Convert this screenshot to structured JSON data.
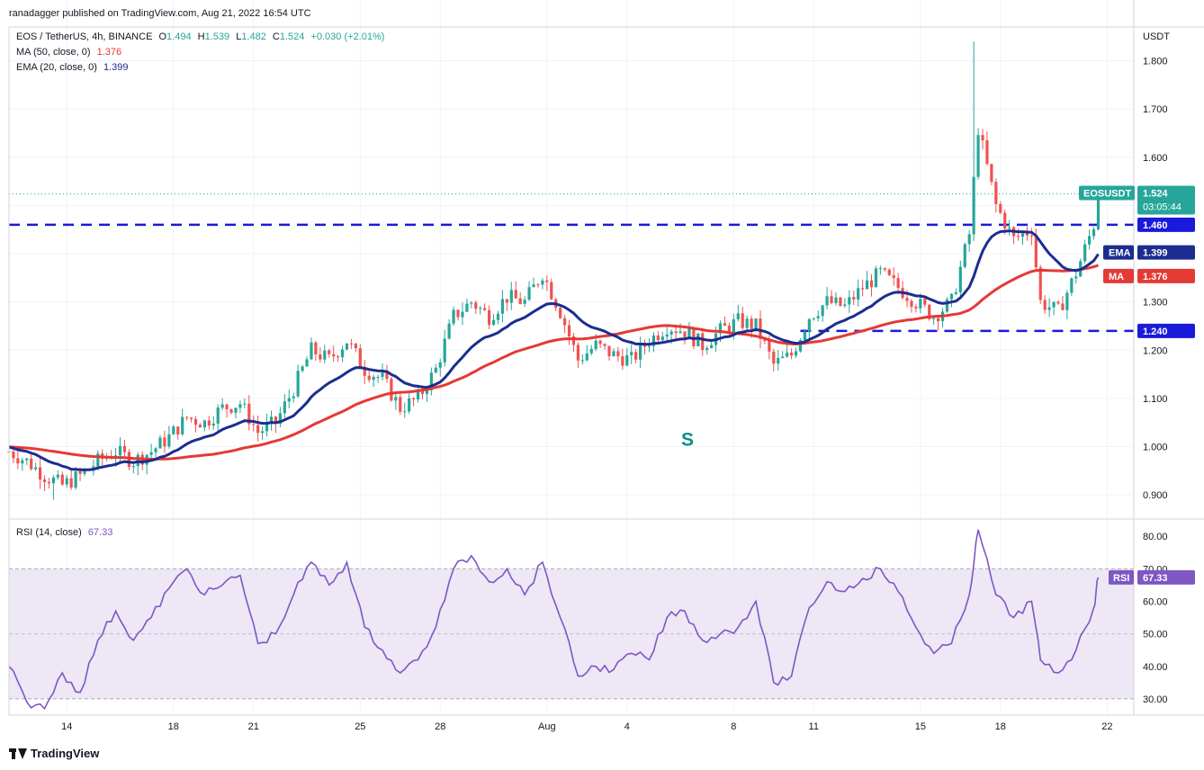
{
  "header": {
    "published": "ranadagger published on TradingView.com, Aug 21, 2022 16:54 UTC",
    "symbol": "EOS / TetherUS, 4h, BINANCE",
    "open_label": "O",
    "open": "1.494",
    "high_label": "H",
    "high": "1.539",
    "low_label": "L",
    "low": "1.482",
    "close_label": "C",
    "close": "1.524",
    "change": "+0.030 (+2.01%)",
    "ma_label": "MA (50, close, 0)",
    "ma_value": "1.376",
    "ema_label": "EMA (20, close, 0)",
    "ema_value": "1.399",
    "rsi_label": "RSI (14, close)",
    "rsi_value": "67.33"
  },
  "footer": {
    "brand": "TradingView"
  },
  "colors": {
    "up": "#26a69a",
    "down": "#ef5350",
    "ema": "#1c2d8f",
    "ma": "#e53935",
    "level": "#1a1adb",
    "rsi": "#7e57c2",
    "rsi_band": "#ede7f6",
    "grid": "#f0f3fa",
    "annotation": "#0a8f86"
  },
  "chart_data": [
    {
      "type": "candlestick",
      "title": "EOS / TetherUS, 4h, BINANCE",
      "price_unit": "USDT",
      "ylim": [
        0.85,
        1.87
      ],
      "y_ticks": [
        0.9,
        1.0,
        1.1,
        1.2,
        1.3,
        1.4,
        1.5,
        1.6,
        1.7,
        1.8
      ],
      "y_tick_labels": [
        "0.900",
        "1.000",
        "1.100",
        "1.200",
        "1.300",
        "1.400",
        "1.500",
        "1.600",
        "1.700",
        "1.800"
      ],
      "x_ticks": [
        {
          "date": "Jul 14",
          "label": "14"
        },
        {
          "date": "Jul 18",
          "label": "18"
        },
        {
          "date": "Jul 21",
          "label": "21"
        },
        {
          "date": "Jul 25",
          "label": "25"
        },
        {
          "date": "Jul 28",
          "label": "28"
        },
        {
          "date": "Aug 1",
          "label": "Aug"
        },
        {
          "date": "Aug 4",
          "label": "4"
        },
        {
          "date": "Aug 8",
          "label": "8"
        },
        {
          "date": "Aug 11",
          "label": "11"
        },
        {
          "date": "Aug 15",
          "label": "15"
        },
        {
          "date": "Aug 18",
          "label": "18"
        },
        {
          "date": "Aug 22",
          "label": "22"
        }
      ],
      "price_path": [
        [
          "Jul 11 20:00",
          0.99
        ],
        [
          "Jul 12 12:00",
          0.97
        ],
        [
          "Jul 13 04:00",
          0.94
        ],
        [
          "Jul 13 20:00",
          0.92
        ],
        [
          "Jul 14 12:00",
          0.94
        ],
        [
          "Jul 15 04:00",
          0.97
        ],
        [
          "Jul 15 20:00",
          0.99
        ],
        [
          "Jul 16 12:00",
          0.97
        ],
        [
          "Jul 17 04:00",
          0.99
        ],
        [
          "Jul 17 20:00",
          1.02
        ],
        [
          "Jul 18 12:00",
          1.06
        ],
        [
          "Jul 19 04:00",
          1.05
        ],
        [
          "Jul 19 20:00",
          1.08
        ],
        [
          "Jul 20 12:00",
          1.09
        ],
        [
          "Jul 21 04:00",
          1.03
        ],
        [
          "Jul 21 20:00",
          1.05
        ],
        [
          "Jul 22 12:00",
          1.12
        ],
        [
          "Jul 23 04:00",
          1.2
        ],
        [
          "Jul 23 20:00",
          1.18
        ],
        [
          "Jul 24 12:00",
          1.22
        ],
        [
          "Jul 25 04:00",
          1.16
        ],
        [
          "Jul 25 20:00",
          1.14
        ],
        [
          "Jul 26 12:00",
          1.08
        ],
        [
          "Jul 27 04:00",
          1.1
        ],
        [
          "Jul 27 20:00",
          1.16
        ],
        [
          "Jul 28 12:00",
          1.27
        ],
        [
          "Jul 29 04:00",
          1.3
        ],
        [
          "Jul 29 20:00",
          1.27
        ],
        [
          "Jul 30 12:00",
          1.31
        ],
        [
          "Jul 31 04:00",
          1.3
        ],
        [
          "Jul 31 20:00",
          1.36
        ],
        [
          "Aug 1 12:00",
          1.28
        ],
        [
          "Aug 2 04:00",
          1.18
        ],
        [
          "Aug 2 20:00",
          1.21
        ],
        [
          "Aug 3 12:00",
          1.19
        ],
        [
          "Aug 4 04:00",
          1.18
        ],
        [
          "Aug 4 20:00",
          1.22
        ],
        [
          "Aug 5 12:00",
          1.25
        ],
        [
          "Aug 6 04:00",
          1.24
        ],
        [
          "Aug 6 20:00",
          1.21
        ],
        [
          "Aug 7 12:00",
          1.24
        ],
        [
          "Aug 8 04:00",
          1.26
        ],
        [
          "Aug 8 20:00",
          1.25
        ],
        [
          "Aug 9 12:00",
          1.17
        ],
        [
          "Aug 10 04:00",
          1.19
        ],
        [
          "Aug 10 20:00",
          1.27
        ],
        [
          "Aug 11 12:00",
          1.3
        ],
        [
          "Aug 12 04:00",
          1.29
        ],
        [
          "Aug 12 20:00",
          1.33
        ],
        [
          "Aug 13 12:00",
          1.36
        ],
        [
          "Aug 14 04:00",
          1.33
        ],
        [
          "Aug 14 20:00",
          1.3
        ],
        [
          "Aug 15 12:00",
          1.27
        ],
        [
          "Aug 16 04:00",
          1.3
        ],
        [
          "Aug 16 20:00",
          1.44
        ],
        [
          "Aug 17 04:00",
          1.66
        ],
        [
          "Aug 17 20:00",
          1.5
        ],
        [
          "Aug 18 12:00",
          1.43
        ],
        [
          "Aug 19 04:00",
          1.45
        ],
        [
          "Aug 19 12:00",
          1.3
        ],
        [
          "Aug 20 04:00",
          1.28
        ],
        [
          "Aug 20 20:00",
          1.36
        ],
        [
          "Aug 21 12:00",
          1.46
        ],
        [
          "Aug 21 16:00",
          1.524
        ]
      ],
      "candle_extremes": {
        "swing_high": 1.84,
        "swing_high_date": "Aug 17",
        "swing_low": 0.89,
        "swing_low_date": "Jul 13"
      },
      "series": [
        {
          "name": "EMA (20, close, 0)",
          "last": 1.399
        },
        {
          "name": "MA (50, close, 0)",
          "last": 1.376
        }
      ],
      "levels": [
        {
          "value": 1.46,
          "label": "1.460"
        },
        {
          "value": 1.24,
          "label": "1.240"
        }
      ],
      "last_price": {
        "symbol": "EOSUSDT",
        "value": 1.524,
        "label": "1.524",
        "countdown": "03:05:44"
      },
      "indicator_tags": [
        {
          "name": "EMA",
          "value": "1.399"
        },
        {
          "name": "MA",
          "value": "1.376"
        }
      ],
      "annotations": [
        {
          "text": "S",
          "date": "Aug 6"
        }
      ]
    },
    {
      "type": "line",
      "title": "RSI (14, close)",
      "ylim": [
        25,
        85
      ],
      "y_ticks": [
        30,
        40,
        50,
        60,
        70,
        80
      ],
      "y_tick_labels": [
        "30.00",
        "40.00",
        "50.00",
        "60.00",
        "70.00",
        "80.00"
      ],
      "band": [
        30,
        70
      ],
      "rsi_path": [
        [
          "Jul 11 20:00",
          40
        ],
        [
          "Jul 12 12:00",
          29
        ],
        [
          "Jul 13 04:00",
          27
        ],
        [
          "Jul 13 20:00",
          38
        ],
        [
          "Jul 14 12:00",
          32
        ],
        [
          "Jul 15 04:00",
          48
        ],
        [
          "Jul 15 20:00",
          57
        ],
        [
          "Jul 16 12:00",
          48
        ],
        [
          "Jul 17 04:00",
          55
        ],
        [
          "Jul 17 20:00",
          64
        ],
        [
          "Jul 18 12:00",
          70
        ],
        [
          "Jul 19 04:00",
          62
        ],
        [
          "Jul 19 20:00",
          65
        ],
        [
          "Jul 20 12:00",
          68
        ],
        [
          "Jul 21 04:00",
          47
        ],
        [
          "Jul 21 20:00",
          50
        ],
        [
          "Jul 22 12:00",
          62
        ],
        [
          "Jul 23 04:00",
          72
        ],
        [
          "Jul 23 20:00",
          65
        ],
        [
          "Jul 24 12:00",
          72
        ],
        [
          "Jul 25 04:00",
          52
        ],
        [
          "Jul 25 20:00",
          45
        ],
        [
          "Jul 26 12:00",
          38
        ],
        [
          "Jul 27 04:00",
          42
        ],
        [
          "Jul 27 20:00",
          52
        ],
        [
          "Jul 28 12:00",
          70
        ],
        [
          "Jul 29 04:00",
          74
        ],
        [
          "Jul 29 20:00",
          66
        ],
        [
          "Jul 30 12:00",
          70
        ],
        [
          "Jul 31 04:00",
          62
        ],
        [
          "Jul 31 20:00",
          72
        ],
        [
          "Aug 1 12:00",
          55
        ],
        [
          "Aug 2 04:00",
          37
        ],
        [
          "Aug 2 20:00",
          40
        ],
        [
          "Aug 3 12:00",
          39
        ],
        [
          "Aug 4 04:00",
          44
        ],
        [
          "Aug 4 20:00",
          42
        ],
        [
          "Aug 5 12:00",
          55
        ],
        [
          "Aug 6 04:00",
          57
        ],
        [
          "Aug 6 20:00",
          48
        ],
        [
          "Aug 7 12:00",
          50
        ],
        [
          "Aug 8 04:00",
          52
        ],
        [
          "Aug 8 20:00",
          60
        ],
        [
          "Aug 9 12:00",
          35
        ],
        [
          "Aug 10 04:00",
          37
        ],
        [
          "Aug 10 20:00",
          58
        ],
        [
          "Aug 11 12:00",
          66
        ],
        [
          "Aug 12 04:00",
          63
        ],
        [
          "Aug 12 20:00",
          67
        ],
        [
          "Aug 13 12:00",
          70
        ],
        [
          "Aug 14 04:00",
          63
        ],
        [
          "Aug 14 20:00",
          52
        ],
        [
          "Aug 15 12:00",
          44
        ],
        [
          "Aug 16 04:00",
          47
        ],
        [
          "Aug 16 20:00",
          62
        ],
        [
          "Aug 17 04:00",
          82
        ],
        [
          "Aug 17 20:00",
          62
        ],
        [
          "Aug 18 12:00",
          55
        ],
        [
          "Aug 19 04:00",
          60
        ],
        [
          "Aug 19 12:00",
          42
        ],
        [
          "Aug 20 04:00",
          38
        ],
        [
          "Aug 20 20:00",
          45
        ],
        [
          "Aug 21 12:00",
          58
        ],
        [
          "Aug 21 16:00",
          67.33
        ]
      ],
      "last": {
        "name": "RSI",
        "value": "67.33"
      }
    }
  ]
}
